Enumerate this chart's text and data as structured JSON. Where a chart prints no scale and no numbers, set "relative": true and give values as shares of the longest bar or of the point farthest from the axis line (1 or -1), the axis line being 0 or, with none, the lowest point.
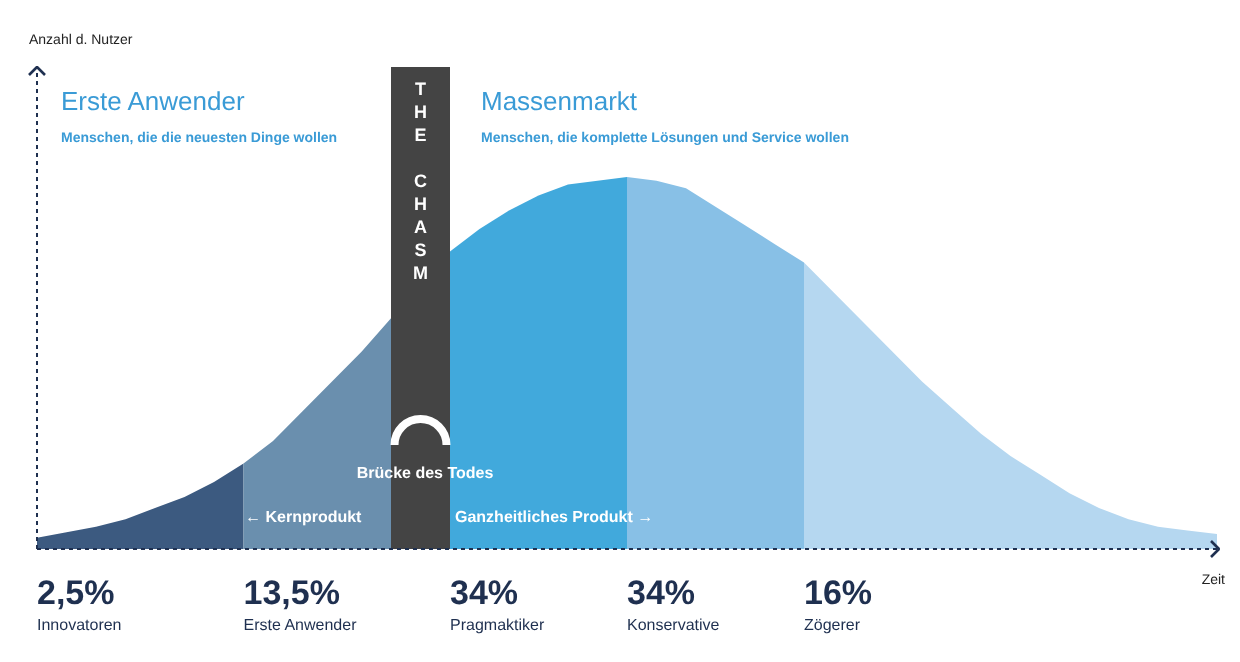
{
  "chart_data": {
    "type": "area",
    "relative": true,
    "xlabel": "Zeit",
    "categories": [
      null,
      null,
      null,
      null,
      null,
      null,
      null,
      null,
      null,
      null,
      null,
      null,
      null,
      null,
      null,
      null,
      null,
      null,
      null,
      null,
      null,
      null,
      null,
      null,
      null,
      null,
      null,
      null,
      null,
      null,
      null,
      null,
      null,
      null,
      null,
      null,
      null,
      null,
      null,
      null,
      null
    ],
    "series": [
      {
        "color": "#3c5a80",
        "values": [
          0.03,
          0.045,
          0.06,
          0.08,
          0.11,
          0.14,
          0.18,
          0.23,
          null,
          null,
          null,
          null,
          null,
          null,
          null,
          null,
          null,
          null,
          null,
          null,
          null,
          null,
          null,
          null,
          null,
          null,
          null,
          null,
          null,
          null,
          null,
          null,
          null,
          null,
          null,
          null,
          null,
          null,
          null,
          null,
          null
        ]
      },
      {
        "color": "#6a8fae",
        "values": [
          null,
          null,
          null,
          null,
          null,
          null,
          null,
          0.23,
          0.29,
          0.37,
          0.45,
          0.53,
          0.62,
          null,
          null,
          null,
          null,
          null,
          null,
          null,
          null,
          null,
          null,
          null,
          null,
          null,
          null,
          null,
          null,
          null,
          null,
          null,
          null,
          null,
          null,
          null,
          null,
          null,
          null,
          null,
          null
        ]
      },
      {
        "color": "#41a9dc",
        "values": [
          null,
          null,
          null,
          null,
          null,
          null,
          null,
          null,
          null,
          null,
          null,
          null,
          null,
          null,
          0.8,
          0.86,
          0.91,
          0.95,
          0.98,
          0.99,
          1,
          null,
          null,
          null,
          null,
          null,
          null,
          null,
          null,
          null,
          null,
          null,
          null,
          null,
          null,
          null,
          null,
          null,
          null,
          null,
          null
        ]
      },
      {
        "color": "#88c0e6",
        "values": [
          null,
          null,
          null,
          null,
          null,
          null,
          null,
          null,
          null,
          null,
          null,
          null,
          null,
          null,
          null,
          null,
          null,
          null,
          null,
          null,
          1,
          0.99,
          0.97,
          0.92,
          0.87,
          0.82,
          0.77,
          null,
          null,
          null,
          null,
          null,
          null,
          null,
          null,
          null,
          null,
          null,
          null,
          null,
          null
        ]
      },
      {
        "color": "#b5d7f0",
        "values": [
          null,
          null,
          null,
          null,
          null,
          null,
          null,
          null,
          null,
          null,
          null,
          null,
          null,
          null,
          null,
          null,
          null,
          null,
          null,
          null,
          null,
          null,
          null,
          null,
          null,
          null,
          0.77,
          0.69,
          0.61,
          0.53,
          0.45,
          0.38,
          0.31,
          0.25,
          0.2,
          0.15,
          0.11,
          0.08,
          0.06,
          0.05,
          0.04
        ]
      }
    ],
    "annotations": [
      "Erste Anwender",
      "Menschen, die die neuesten Dinge wollen",
      "Massenmarkt",
      "Menschen, die komplette Lösungen und Service wollen",
      "Brücke des Todes",
      "← Kernprodukt",
      "Ganzheitliches Produkt →",
      "THE CHASM",
      "2,5%",
      "13,5%",
      "34%",
      "34%",
      "16%",
      "Innovatoren",
      "Erste Anwender",
      "Pragmaktiker",
      "Konservative",
      "Zögerer",
      "Anzahl d. Nutzer"
    ]
  }
}
